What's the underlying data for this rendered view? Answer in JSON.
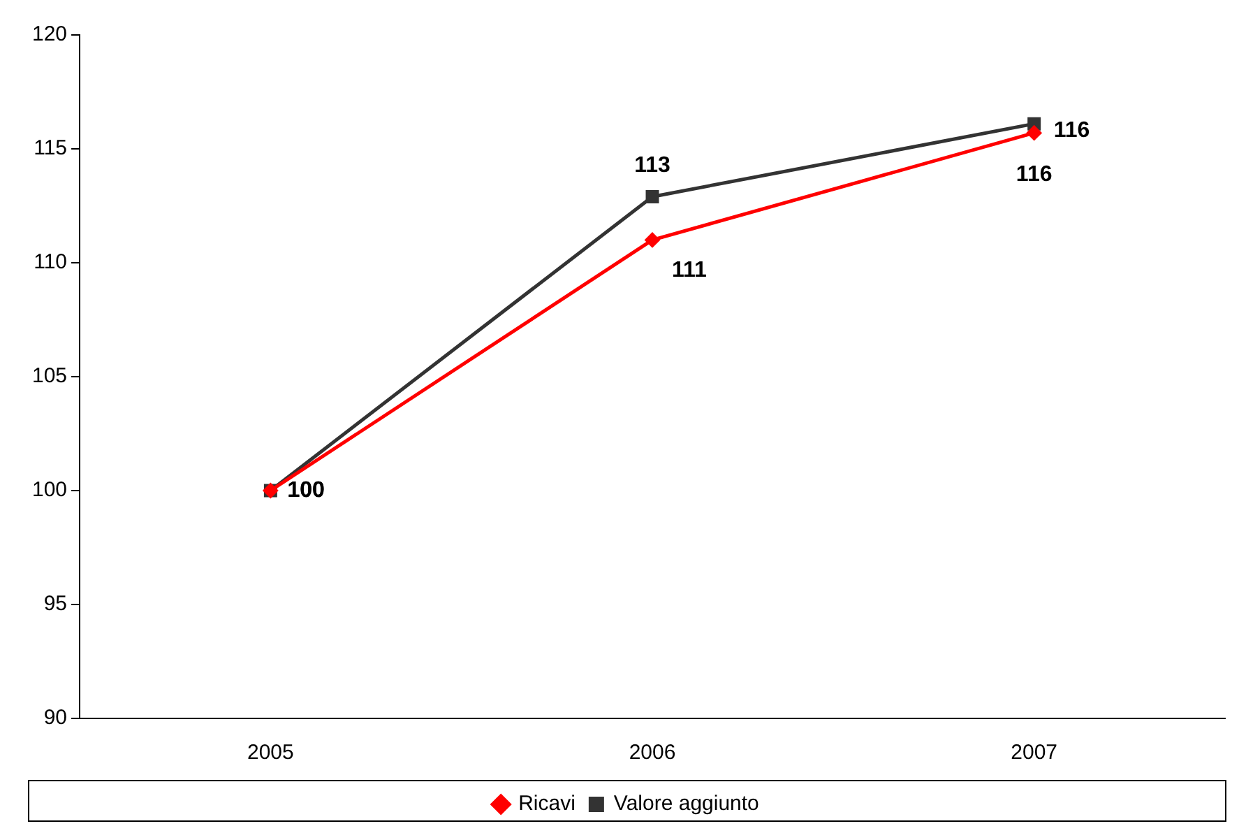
{
  "chart_data": {
    "type": "line",
    "categories": [
      "2005",
      "2006",
      "2007"
    ],
    "series": [
      {
        "name": "Ricavi",
        "color": "#ff0000",
        "marker": "diamond",
        "values": [
          100,
          111,
          115.7
        ],
        "value_labels": [
          "100",
          "111",
          "116"
        ]
      },
      {
        "name": "Valore aggiunto",
        "color": "#333333",
        "marker": "square",
        "values": [
          100,
          112.9,
          116.1
        ],
        "value_labels": [
          "100",
          "113",
          "116"
        ]
      }
    ],
    "ylim": [
      90,
      120
    ],
    "yticks": [
      90,
      95,
      100,
      105,
      110,
      115,
      120
    ],
    "grid": false,
    "legend": "bottom"
  }
}
